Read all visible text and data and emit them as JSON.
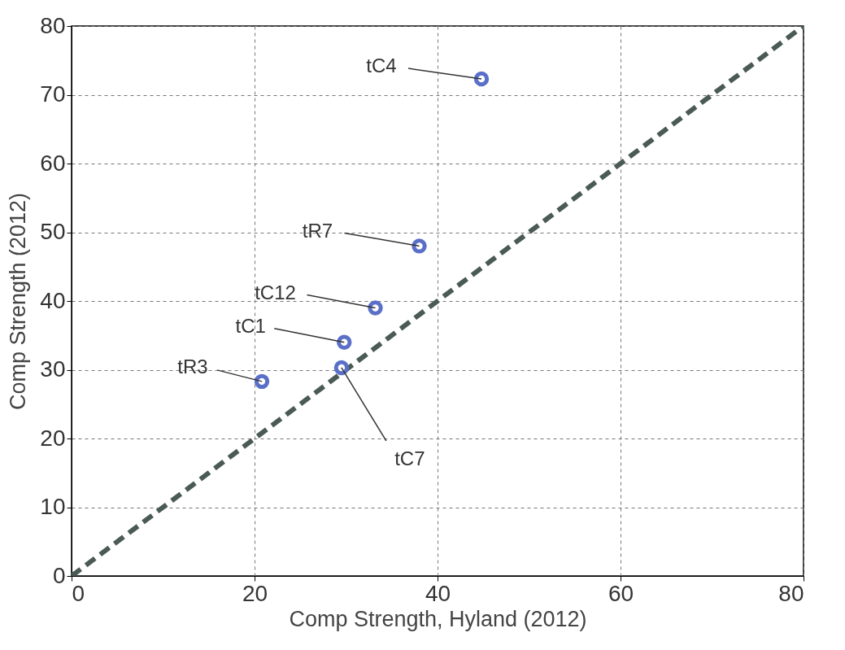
{
  "chart_data": {
    "type": "scatter",
    "xlabel": "Comp Strength, Hyland (2012)",
    "ylabel": "Comp Strength (2012)",
    "xlim": [
      0,
      80
    ],
    "ylim": [
      0,
      80
    ],
    "xticks": [
      0,
      20,
      40,
      60,
      80
    ],
    "yticks": [
      0,
      10,
      20,
      30,
      40,
      50,
      60,
      70,
      80
    ],
    "grid": true,
    "marker": "circle",
    "series": [
      {
        "type": "line",
        "color": "#4a5a55",
        "line_style": "dashed",
        "marker": "none",
        "x": [
          0,
          80
        ],
        "values": [
          0,
          80
        ]
      },
      {
        "color": "#5a6fc8",
        "x": [
          44.8,
          38,
          33.2,
          29.8,
          29.5,
          20.8
        ],
        "values": [
          72.3,
          48,
          39,
          34,
          30.3,
          28.3
        ]
      }
    ],
    "annotations": [
      {
        "text": "tC4",
        "x": 44.8,
        "y": 72.3
      },
      {
        "text": "tR7",
        "x": 38,
        "y": 48
      },
      {
        "text": "tC12",
        "x": 33.2,
        "y": 39
      },
      {
        "text": "tC1",
        "x": 29.8,
        "y": 34
      },
      {
        "text": "tC7",
        "x": 29.5,
        "y": 30.3
      },
      {
        "text": "tR3",
        "x": 20.8,
        "y": 28.3
      }
    ]
  }
}
